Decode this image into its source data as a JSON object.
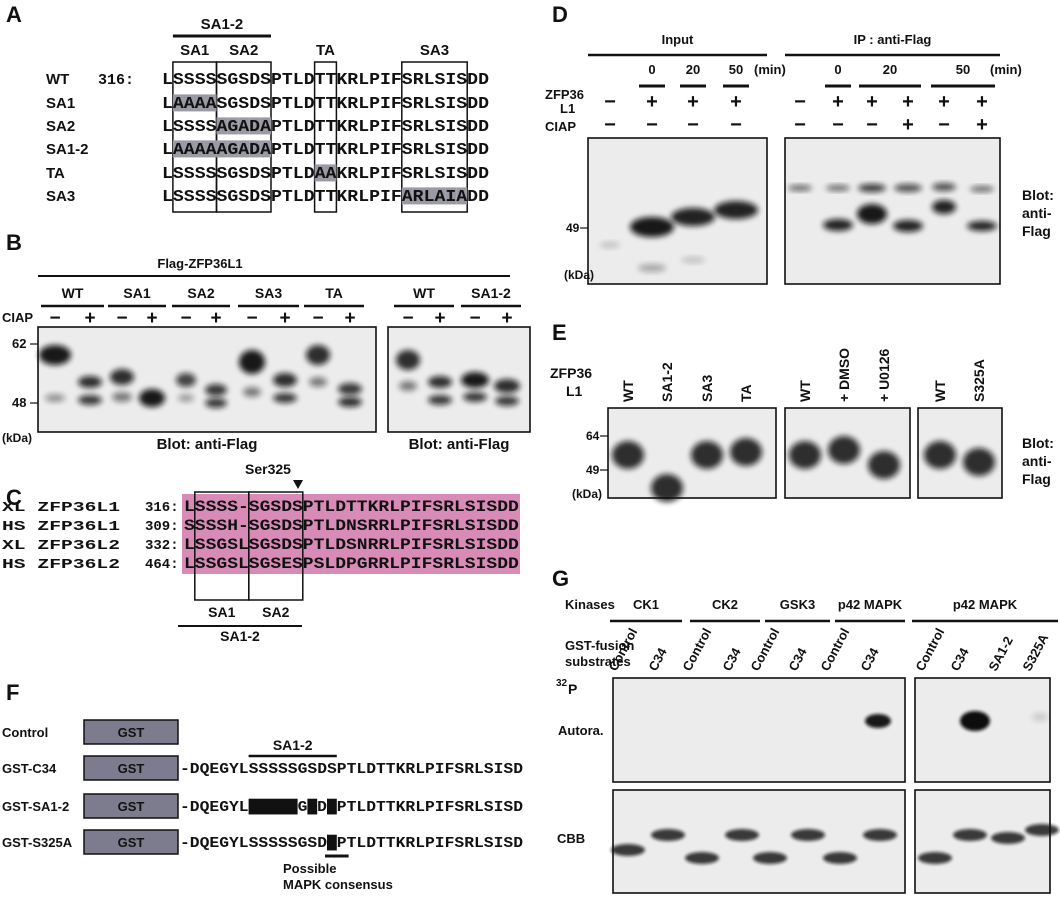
{
  "A": {
    "label": "A",
    "group": "SA1-2",
    "boxes": [
      "SA1",
      "SA2",
      "TA",
      "SA3"
    ],
    "rows": [
      {
        "name": "WT",
        "start": "316:",
        "seq": [
          {
            "text": "LSSSSSGSDSPTLDTTKRLPIFSRLSISDD"
          }
        ]
      },
      {
        "name": "SA1",
        "seq": [
          {
            "text": "L"
          },
          {
            "text": "AAAA",
            "red": true,
            "shade": true
          },
          {
            "text": "SGSDSPTLDTTKRLPIFSRLSISDD"
          }
        ]
      },
      {
        "name": "SA2",
        "seq": [
          {
            "text": "LSSSS"
          },
          {
            "text": "A",
            "red": true,
            "shade": true
          },
          {
            "text": "G",
            "shade": true
          },
          {
            "text": "A",
            "red": true,
            "shade": true
          },
          {
            "text": "D",
            "shade": true
          },
          {
            "text": "A",
            "red": true,
            "shade": true
          },
          {
            "text": "PTLDTTKRLPIFSRLSISDD"
          }
        ]
      },
      {
        "name": "SA1-2",
        "seq": [
          {
            "text": "L"
          },
          {
            "text": "AAAAA",
            "red": true,
            "shade": true
          },
          {
            "text": "G",
            "shade": true
          },
          {
            "text": "A",
            "red": true,
            "shade": true
          },
          {
            "text": "D",
            "shade": true
          },
          {
            "text": "A",
            "red": true,
            "shade": true
          },
          {
            "text": "PTLDTTKRLPIFSRLSISDD"
          }
        ]
      },
      {
        "name": "TA",
        "seq": [
          {
            "text": "LSSSSSGSDSPTLD"
          },
          {
            "text": "AA",
            "red": true,
            "shade": true
          },
          {
            "text": "KRLPIFSRLSISDD"
          }
        ]
      },
      {
        "name": "SA3",
        "seq": [
          {
            "text": "LSSSSSGSDSPTLDTTKRLPIF"
          },
          {
            "text": "A",
            "red": true,
            "shade": true
          },
          {
            "text": "RL",
            "shade": true
          },
          {
            "text": "A",
            "red": true,
            "shade": true
          },
          {
            "text": "I",
            "shade": true
          },
          {
            "text": "A",
            "red": true,
            "shade": true
          },
          {
            "text": "DD"
          }
        ]
      }
    ]
  },
  "B": {
    "label": "B",
    "title": "Flag-ZFP36L1",
    "ciap": "CIAP",
    "panels": [
      {
        "groups": [
          {
            "name": "WT",
            "signs": [
              "−",
              "+"
            ]
          },
          {
            "name": "SA1",
            "signs": [
              "−",
              "+"
            ]
          },
          {
            "name": "SA2",
            "signs": [
              "−",
              "+"
            ]
          },
          {
            "name": "SA3",
            "signs": [
              "−",
              "+"
            ]
          },
          {
            "name": "TA",
            "signs": [
              "−",
              "+"
            ]
          }
        ],
        "blot": "Blot: anti-Flag"
      },
      {
        "groups": [
          {
            "name": "WT",
            "signs": [
              "−",
              "+"
            ]
          },
          {
            "name": "SA1-2",
            "signs": [
              "−",
              "+"
            ]
          }
        ],
        "blot": "Blot: anti-Flag"
      }
    ],
    "markers": [
      "62",
      "48"
    ],
    "unit": "(kDa)"
  },
  "C": {
    "label": "C",
    "site": "Ser325",
    "rows": [
      {
        "name": "XL ZFP36L1",
        "start": "316:",
        "seq": "LSSSS-SGSDSPTLDTTKRLPIFSRLSISDD"
      },
      {
        "name": "HS ZFP36L1",
        "start": "309:",
        "seq": "SSSSH-SGSDSPTLDNSRRLPIFSRLSISDD"
      },
      {
        "name": "XL ZFP36L2",
        "start": "332:",
        "seq": "LSSGSLSGSDSPTLDSNRRLPIFSRLSISDD"
      },
      {
        "name": "HS ZFP36L2",
        "start": "464:",
        "seq": "LSSGSLSGSESPSLDPGRRLPIFSRLSISDD"
      }
    ],
    "boxes": [
      "SA1",
      "SA2"
    ],
    "group": "SA1-2"
  },
  "D": {
    "label": "D",
    "input": {
      "title": "Input",
      "times": [
        "0",
        "20",
        "50"
      ],
      "time_unit": "(min)",
      "gene_signs": [
        "−",
        "+",
        "+",
        "+"
      ],
      "ciap_signs": [
        "−",
        "−",
        "−",
        "−"
      ]
    },
    "ip": {
      "title": "IP : anti-Flag",
      "times": [
        "0",
        "20",
        "50"
      ],
      "time_unit": "(min)",
      "gene_signs": [
        "−",
        "+",
        "+",
        "+",
        "+",
        "+"
      ],
      "ciap_signs": [
        "−",
        "−",
        "−",
        "+",
        "−",
        "+"
      ]
    },
    "gene": [
      "ZFP36",
      "L1"
    ],
    "ciap": "CIAP",
    "marker": "49",
    "unit": "(kDa)",
    "blot": [
      "Blot:",
      "anti-",
      "Flag"
    ]
  },
  "E": {
    "label": "E",
    "gene": [
      "ZFP36",
      "L1"
    ],
    "panels": [
      [
        "WT",
        "SA1-2",
        "SA3",
        "TA"
      ],
      [
        "WT",
        "+ DMSO",
        "+ U0126"
      ],
      [
        "WT",
        "S325A"
      ]
    ],
    "markers": [
      "64",
      "49"
    ],
    "unit": "(kDa)",
    "blot": [
      "Blot:",
      "anti-",
      "Flag"
    ]
  },
  "F": {
    "label": "F",
    "group": "SA1-2",
    "note": [
      "Possible",
      "MAPK consensus"
    ],
    "rows": [
      {
        "name": "Control",
        "box": "GST"
      },
      {
        "name": "GST-C34",
        "box": "GST",
        "seq": [
          {
            "text": "-DQEGYLSSSSSGSDSPTLDTTKRLPIFSRLSISD"
          }
        ]
      },
      {
        "name": "GST-SA1-2",
        "box": "GST",
        "seq": [
          {
            "text": "-DQEGYL"
          },
          {
            "text": "AAAAA",
            "inverse": true
          },
          {
            "text": "G"
          },
          {
            "text": "A",
            "inverse": true
          },
          {
            "text": "D"
          },
          {
            "text": "A",
            "inverse": true
          },
          {
            "text": "PTLDTTKRLPIFSRLSISD"
          }
        ]
      },
      {
        "name": "GST-S325A",
        "box": "GST",
        "seq": [
          {
            "text": "-DQEGYLSSSSSGSD"
          },
          {
            "text": "A",
            "inverse": true
          },
          {
            "text": "PTLDTTKRLPIFSRLSISD"
          }
        ]
      }
    ]
  },
  "G": {
    "label": "G",
    "kinases_label": "Kinases",
    "kinases": [
      "CK1",
      "CK2",
      "GSK3",
      "p42 MAPK",
      "p42 MAPK"
    ],
    "substrates_label": [
      "GST-fusion",
      "substrates"
    ],
    "lanes": [
      "Control",
      "C34",
      "Control",
      "C34",
      "Control",
      "C34",
      "Control",
      "C34",
      "Control",
      "C34",
      "SA1-2",
      "S325A"
    ],
    "autora": {
      "sup": "32",
      "text": "P",
      "line2": "Autora."
    },
    "cbb": "CBB"
  }
}
